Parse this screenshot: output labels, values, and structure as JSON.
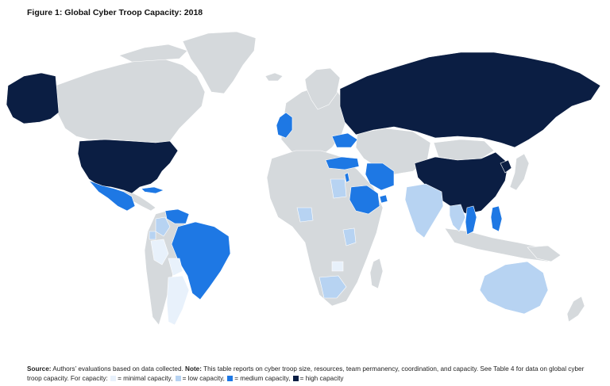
{
  "figure": {
    "title": "Figure 1: Global Cyber Troop Capacity: 2018"
  },
  "colors": {
    "ocean": "#ffffff",
    "no_data": "#d5d9dc",
    "minimal": "#e8f1fb",
    "low": "#b7d3f2",
    "medium": "#1e78e4",
    "high": "#0b1e43"
  },
  "regions": {
    "united_states": "high",
    "alaska": "high",
    "russia": "high",
    "china": "high",
    "north_korea": "high",
    "united_kingdom": "medium",
    "brazil": "medium",
    "venezuela": "medium",
    "mexico": "medium",
    "cuba": "medium",
    "saudi_arabia": "medium",
    "iran": "medium",
    "israel": "medium",
    "turkey": "medium",
    "ukraine": "medium",
    "vietnam": "medium",
    "philippines": "medium",
    "uae": "medium",
    "india": "low",
    "australia": "low",
    "south_africa": "low",
    "nigeria": "low",
    "kenya": "low",
    "egypt": "low",
    "thailand": "low",
    "colombia": "low",
    "ecuador": "low",
    "peru": "minimal",
    "bolivia": "minimal",
    "argentina": "minimal",
    "zimbabwe": "minimal"
  },
  "caption": {
    "source_label": "Source:",
    "source_text": " Authors’ evaluations based on data collected. ",
    "note_label": "Note:",
    "note_text": " This table reports on cyber troop size, resources, team permanency, coordination, and capacity. See Table 4 for data on global cyber troop capacity. For capacity: ",
    "legend": [
      {
        "key": "minimal",
        "label": "= minimal capacity,"
      },
      {
        "key": "low",
        "label": "= low capacity,"
      },
      {
        "key": "medium",
        "label": "= medium capacity,"
      },
      {
        "key": "high",
        "label": "= high capacity"
      }
    ]
  }
}
